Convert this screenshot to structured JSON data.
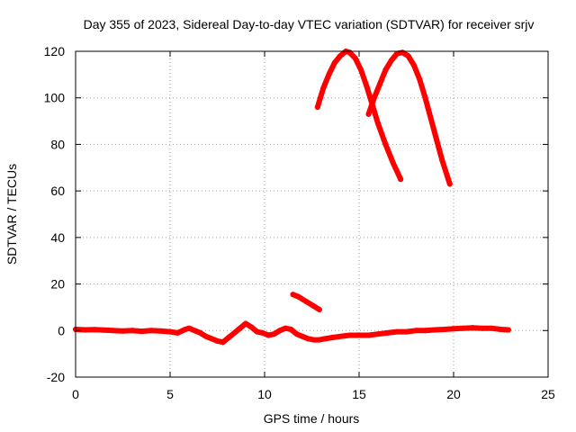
{
  "chart_data": {
    "type": "line",
    "title": "Day 355 of 2023, Sidereal Day-to-day VTEC variation (SDTVAR) for receiver srjv",
    "xlabel": "GPS time / hours",
    "ylabel": "SDTVAR / TECUs",
    "xlim": [
      0,
      25
    ],
    "ylim": [
      -20,
      120
    ],
    "xticks": [
      0,
      5,
      10,
      15,
      20,
      25
    ],
    "yticks": [
      -20,
      0,
      20,
      40,
      60,
      80,
      100,
      120
    ],
    "grid": true,
    "legend": "none",
    "series_color": "#ff0000",
    "series": [
      {
        "x": [
          0.0,
          0.5,
          1.0,
          1.5,
          2.0,
          2.5,
          3.0,
          3.5,
          4.0,
          4.5,
          5.0,
          5.4,
          5.8,
          6.0,
          6.3,
          6.6,
          6.9,
          7.2,
          7.5,
          7.8,
          8.1,
          8.4,
          8.7,
          9.0,
          9.3,
          9.6,
          9.9,
          10.2,
          10.5,
          10.8,
          11.1,
          11.4,
          11.7,
          12.0,
          12.3,
          12.6,
          12.9,
          13.2,
          13.6,
          14.0,
          14.5,
          15.0,
          15.5,
          16.0,
          16.5,
          17.0,
          17.5,
          18.0,
          18.5,
          19.0,
          19.5,
          20.0,
          20.5,
          21.0,
          21.5,
          22.0,
          22.5,
          22.9
        ],
        "y": [
          0.5,
          0.3,
          0.4,
          0.2,
          0.0,
          -0.2,
          0.0,
          -0.3,
          0.0,
          -0.2,
          -0.5,
          -1.0,
          0.5,
          1.0,
          0.0,
          -1.0,
          -2.5,
          -3.5,
          -4.5,
          -5.0,
          -3.0,
          -1.0,
          1.0,
          3.0,
          1.5,
          -0.5,
          -1.0,
          -2.0,
          -1.5,
          0.0,
          1.0,
          0.5,
          -1.5,
          -2.5,
          -3.5,
          -4.0,
          -4.0,
          -3.5,
          -3.0,
          -2.5,
          -2.0,
          -2.0,
          -2.0,
          -1.5,
          -1.0,
          -0.5,
          -0.5,
          0.0,
          0.0,
          0.3,
          0.5,
          0.8,
          1.0,
          1.2,
          1.0,
          1.0,
          0.5,
          0.3
        ]
      },
      {
        "x": [
          11.5,
          11.8,
          12.2,
          12.6,
          12.9
        ],
        "y": [
          15.5,
          14.5,
          12.5,
          10.5,
          9.0
        ]
      },
      {
        "x": [
          12.8,
          13.1,
          13.4,
          13.7,
          14.0,
          14.3,
          14.5,
          14.8,
          15.1,
          15.4,
          15.7,
          16.0,
          16.4,
          16.8,
          17.2
        ],
        "y": [
          96,
          104,
          110,
          115,
          118,
          120,
          119.5,
          117,
          112,
          105,
          97,
          89,
          80,
          72,
          65
        ]
      },
      {
        "x": [
          15.5,
          15.8,
          16.1,
          16.4,
          16.7,
          17.0,
          17.3,
          17.6,
          17.9,
          18.2,
          18.5,
          18.8,
          19.1,
          19.4,
          19.8
        ],
        "y": [
          93,
          100,
          106,
          112,
          116,
          119,
          119.5,
          118,
          114,
          108,
          100,
          91,
          82,
          73,
          63
        ]
      }
    ]
  }
}
